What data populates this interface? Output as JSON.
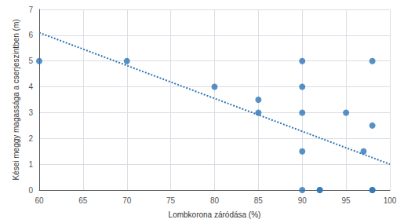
{
  "chart_data": {
    "type": "scatter",
    "xlabel": "Lombkorona záródása (%)",
    "ylabel": "Kései meggy magassága a cserjeszintben (m)",
    "series": [
      {
        "type": "scatter",
        "color": "#2E75B6",
        "x": [
          60,
          70,
          80,
          85,
          85,
          90,
          90,
          90,
          90,
          90,
          92,
          92,
          95,
          97,
          98,
          98,
          98,
          98
        ],
        "values": [
          5,
          5,
          4,
          3.5,
          3,
          5,
          4,
          3,
          1.5,
          0,
          0,
          0,
          3,
          1.5,
          5,
          2.5,
          0,
          0
        ]
      },
      {
        "type": "line",
        "line_style": "dotted",
        "color": "#2E75B6",
        "x": [
          60,
          100
        ],
        "values": [
          6.1,
          1.0
        ]
      }
    ],
    "xlim": [
      60,
      100
    ],
    "xticks": [
      60,
      65,
      70,
      75,
      80,
      85,
      90,
      95,
      100
    ],
    "ylim": [
      0,
      7
    ],
    "yticks": [
      0,
      1,
      2,
      3,
      4,
      5,
      6,
      7
    ],
    "grid": true
  }
}
